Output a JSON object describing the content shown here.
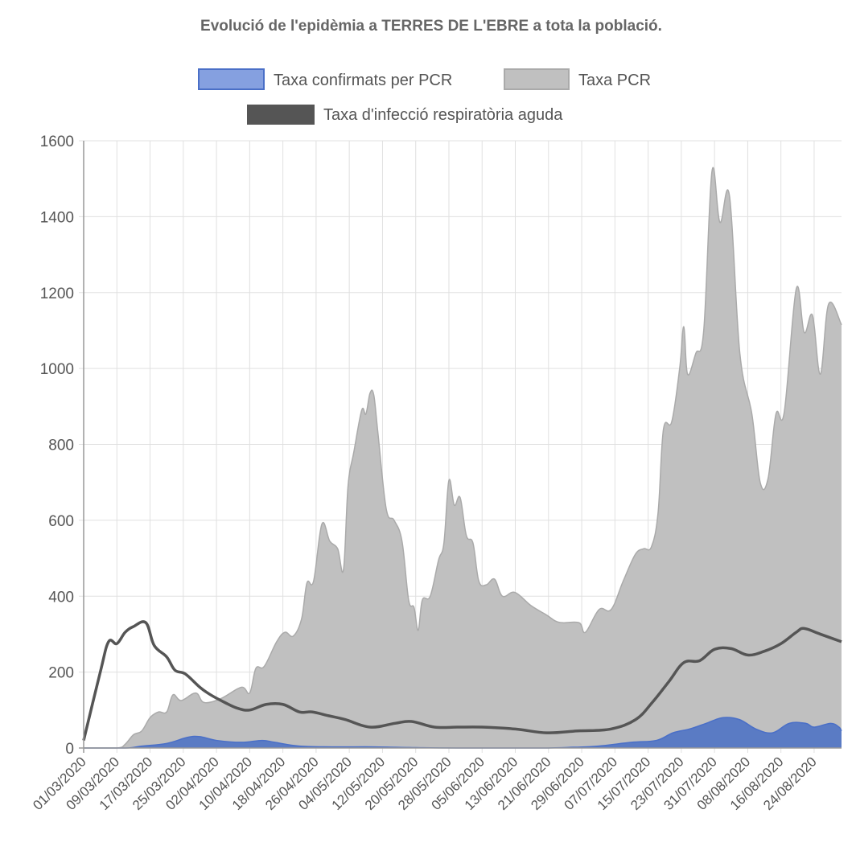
{
  "chart_data": {
    "type": "area",
    "title": "Evolució de l'epidèmia a TERRES DE L'EBRE a tota la població.",
    "xlabel": "",
    "ylabel": "",
    "x_unit": "days since 01/03/2020",
    "xlim": [
      0,
      182.6
    ],
    "ylim": [
      0,
      1600
    ],
    "yticks": [
      0,
      200,
      400,
      600,
      800,
      1000,
      1200,
      1400,
      1600
    ],
    "xtick_labels": [
      "01/03/2020",
      "09/03/2020",
      "17/03/2020",
      "25/03/2020",
      "02/04/2020",
      "10/04/2020",
      "18/04/2020",
      "26/04/2020",
      "04/05/2020",
      "12/05/2020",
      "20/05/2020",
      "28/05/2020",
      "05/06/2020",
      "13/06/2020",
      "21/06/2020",
      "29/06/2020",
      "07/07/2020",
      "15/07/2020",
      "23/07/2020",
      "31/07/2020",
      "08/08/2020",
      "16/08/2020",
      "24/08/2020"
    ],
    "xtick_step_days": 8,
    "grid": true,
    "legend_position": "top",
    "series": [
      {
        "name": "Taxa confirmats per PCR",
        "kind": "area",
        "color": "#4a6fc7",
        "fill": "#5a7bc4",
        "points": [
          [
            0,
            0
          ],
          [
            10,
            0
          ],
          [
            14,
            5
          ],
          [
            20,
            12
          ],
          [
            25,
            28
          ],
          [
            28,
            30
          ],
          [
            32,
            20
          ],
          [
            38,
            15
          ],
          [
            43,
            20
          ],
          [
            46,
            15
          ],
          [
            52,
            5
          ],
          [
            60,
            3
          ],
          [
            70,
            3
          ],
          [
            80,
            1
          ],
          [
            90,
            0
          ],
          [
            110,
            0
          ],
          [
            118,
            2
          ],
          [
            124,
            5
          ],
          [
            132,
            15
          ],
          [
            138,
            20
          ],
          [
            142,
            40
          ],
          [
            146,
            50
          ],
          [
            150,
            65
          ],
          [
            154,
            80
          ],
          [
            158,
            75
          ],
          [
            162,
            50
          ],
          [
            166,
            40
          ],
          [
            170,
            65
          ],
          [
            174,
            65
          ],
          [
            176,
            55
          ],
          [
            180,
            65
          ],
          [
            182,
            55
          ],
          [
            182.6,
            45
          ]
        ]
      },
      {
        "name": "Taxa PCR",
        "kind": "area",
        "color": "#aaaaaa",
        "fill": "#c0c0c0",
        "points": [
          [
            0,
            0
          ],
          [
            8,
            0
          ],
          [
            10,
            10
          ],
          [
            12,
            35
          ],
          [
            14,
            45
          ],
          [
            16,
            80
          ],
          [
            18,
            95
          ],
          [
            20,
            95
          ],
          [
            21.5,
            140
          ],
          [
            23.5,
            125
          ],
          [
            27,
            145
          ],
          [
            29,
            120
          ],
          [
            33,
            130
          ],
          [
            38,
            160
          ],
          [
            40,
            145
          ],
          [
            41.5,
            210
          ],
          [
            43.5,
            215
          ],
          [
            46.5,
            280
          ],
          [
            48.5,
            305
          ],
          [
            50.5,
            295
          ],
          [
            52.5,
            340
          ],
          [
            53.8,
            435
          ],
          [
            55.4,
            440
          ],
          [
            57.4,
            590
          ],
          [
            59.3,
            545
          ],
          [
            61.2,
            525
          ],
          [
            62.6,
            470
          ],
          [
            63.7,
            690
          ],
          [
            65.1,
            780
          ],
          [
            67,
            890
          ],
          [
            68,
            880
          ],
          [
            69,
            935
          ],
          [
            69.9,
            930
          ],
          [
            70.9,
            830
          ],
          [
            72.9,
            630
          ],
          [
            74.8,
            600
          ],
          [
            76.7,
            545
          ],
          [
            78.3,
            390
          ],
          [
            79.6,
            370
          ],
          [
            80.6,
            310
          ],
          [
            81.6,
            390
          ],
          [
            83.5,
            400
          ],
          [
            85.5,
            495
          ],
          [
            86.8,
            540
          ],
          [
            88,
            705
          ],
          [
            89.3,
            640
          ],
          [
            90.7,
            660
          ],
          [
            92.2,
            560
          ],
          [
            93.8,
            540
          ],
          [
            95.2,
            440
          ],
          [
            97,
            430
          ],
          [
            99,
            445
          ],
          [
            100.9,
            400
          ],
          [
            103.9,
            410
          ],
          [
            107.8,
            375
          ],
          [
            111.6,
            350
          ],
          [
            113.6,
            335
          ],
          [
            115.5,
            330
          ],
          [
            119.4,
            330
          ],
          [
            120.9,
            305
          ],
          [
            124.2,
            365
          ],
          [
            127.1,
            365
          ],
          [
            130,
            440
          ],
          [
            132.9,
            510
          ],
          [
            134.9,
            525
          ],
          [
            136.8,
            530
          ],
          [
            138.4,
            620
          ],
          [
            139.7,
            840
          ],
          [
            141.7,
            860
          ],
          [
            143.6,
            1000
          ],
          [
            144.6,
            1110
          ],
          [
            145.5,
            985
          ],
          [
            147.5,
            1040
          ],
          [
            149.4,
            1100
          ],
          [
            151.4,
            1520
          ],
          [
            153.3,
            1385
          ],
          [
            155.6,
            1455
          ],
          [
            158.1,
            1040
          ],
          [
            161,
            880
          ],
          [
            163,
            700
          ],
          [
            164.9,
            710
          ],
          [
            166.8,
            880
          ],
          [
            168.8,
            885
          ],
          [
            171.7,
            1210
          ],
          [
            173.6,
            1095
          ],
          [
            175.6,
            1140
          ],
          [
            177.5,
            985
          ],
          [
            179.5,
            1170
          ],
          [
            182.6,
            1115
          ]
        ]
      },
      {
        "name": "Taxa d'infecció respiratòria aguda",
        "kind": "line",
        "color": "#555555",
        "points": [
          [
            0,
            20
          ],
          [
            4,
            200
          ],
          [
            6,
            280
          ],
          [
            8,
            275
          ],
          [
            10,
            305
          ],
          [
            12,
            320
          ],
          [
            15,
            330
          ],
          [
            17,
            270
          ],
          [
            20,
            240
          ],
          [
            22,
            205
          ],
          [
            24.5,
            195
          ],
          [
            28,
            160
          ],
          [
            30.6,
            140
          ],
          [
            34,
            120
          ],
          [
            37,
            105
          ],
          [
            40,
            100
          ],
          [
            44,
            115
          ],
          [
            48,
            115
          ],
          [
            52,
            95
          ],
          [
            55,
            95
          ],
          [
            59,
            85
          ],
          [
            63,
            75
          ],
          [
            69,
            55
          ],
          [
            75,
            65
          ],
          [
            79,
            70
          ],
          [
            84.5,
            55
          ],
          [
            90,
            55
          ],
          [
            96,
            55
          ],
          [
            104,
            50
          ],
          [
            111.6,
            40
          ],
          [
            119,
            45
          ],
          [
            127,
            50
          ],
          [
            133,
            75
          ],
          [
            137,
            120
          ],
          [
            141,
            175
          ],
          [
            144.6,
            225
          ],
          [
            148.4,
            230
          ],
          [
            152,
            260
          ],
          [
            156,
            262
          ],
          [
            160,
            245
          ],
          [
            164,
            255
          ],
          [
            168,
            275
          ],
          [
            171.7,
            305
          ],
          [
            173.6,
            315
          ],
          [
            177.5,
            300
          ],
          [
            182.6,
            280
          ]
        ]
      }
    ]
  }
}
